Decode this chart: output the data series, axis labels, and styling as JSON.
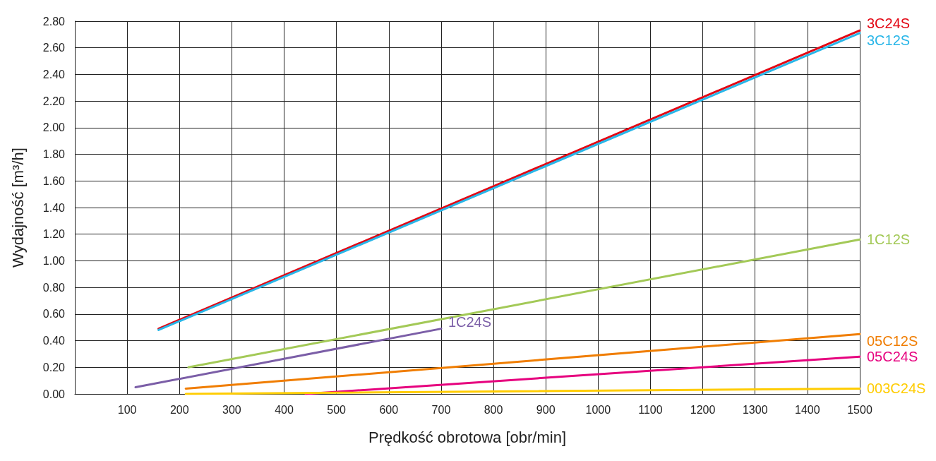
{
  "chart_data": {
    "type": "line",
    "xlabel": "Prędkość obrotowa [obr/min]",
    "ylabel": "Wydajność [m³/h]",
    "xlim": [
      0,
      1500
    ],
    "xticks": [
      100,
      200,
      300,
      400,
      500,
      600,
      700,
      800,
      900,
      1000,
      1100,
      1200,
      1300,
      1400,
      1500
    ],
    "ylim": [
      0,
      2.8
    ],
    "yticks": [
      {
        "value": 0,
        "label": "0.00"
      },
      {
        "value": 0.2,
        "label": "0.20"
      },
      {
        "value": 0.4,
        "label": "0.40"
      },
      {
        "value": 0.6,
        "label": "0.60"
      },
      {
        "value": 0.8,
        "label": "0.80"
      },
      {
        "value": 1,
        "label": "1.00"
      },
      {
        "value": 1.2,
        "label": "1.20"
      },
      {
        "value": 1.4,
        "label": "1.40"
      },
      {
        "value": 1.6,
        "label": "1.60"
      },
      {
        "value": 1.8,
        "label": "1.80"
      },
      {
        "value": 2,
        "label": "2.00"
      },
      {
        "value": 2.2,
        "label": "2.20"
      },
      {
        "value": 2.4,
        "label": "2.40"
      },
      {
        "value": 2.6,
        "label": "2.60"
      },
      {
        "value": 2.8,
        "label": "2.80"
      }
    ],
    "grid": true,
    "legend": false,
    "marker": "none",
    "line_style": "solid",
    "series": [
      {
        "name": "3C24S",
        "color": "#e30613",
        "x": [
          160,
          1500
        ],
        "values": [
          0.49,
          2.73
        ]
      },
      {
        "name": "3C12S",
        "color": "#29b6e8",
        "x": [
          160,
          1500
        ],
        "values": [
          0.48,
          2.71
        ]
      },
      {
        "name": "1C12S",
        "color": "#a3c957",
        "x": [
          217,
          1500
        ],
        "values": [
          0.2,
          1.16
        ]
      },
      {
        "name": "1C24S",
        "color": "#7b5ea7",
        "x": [
          116,
          700
        ],
        "values": [
          0.05,
          0.49
        ]
      },
      {
        "name": "05C12S",
        "color": "#f07d00",
        "x": [
          212,
          1500
        ],
        "values": [
          0.04,
          0.45
        ]
      },
      {
        "name": "05C24S",
        "color": "#e6007e",
        "x": [
          441,
          1500
        ],
        "values": [
          0,
          0.28
        ]
      },
      {
        "name": "003C24S",
        "color": "#ffcc00",
        "x": [
          212,
          1500
        ],
        "values": [
          0,
          0.04
        ]
      }
    ]
  }
}
